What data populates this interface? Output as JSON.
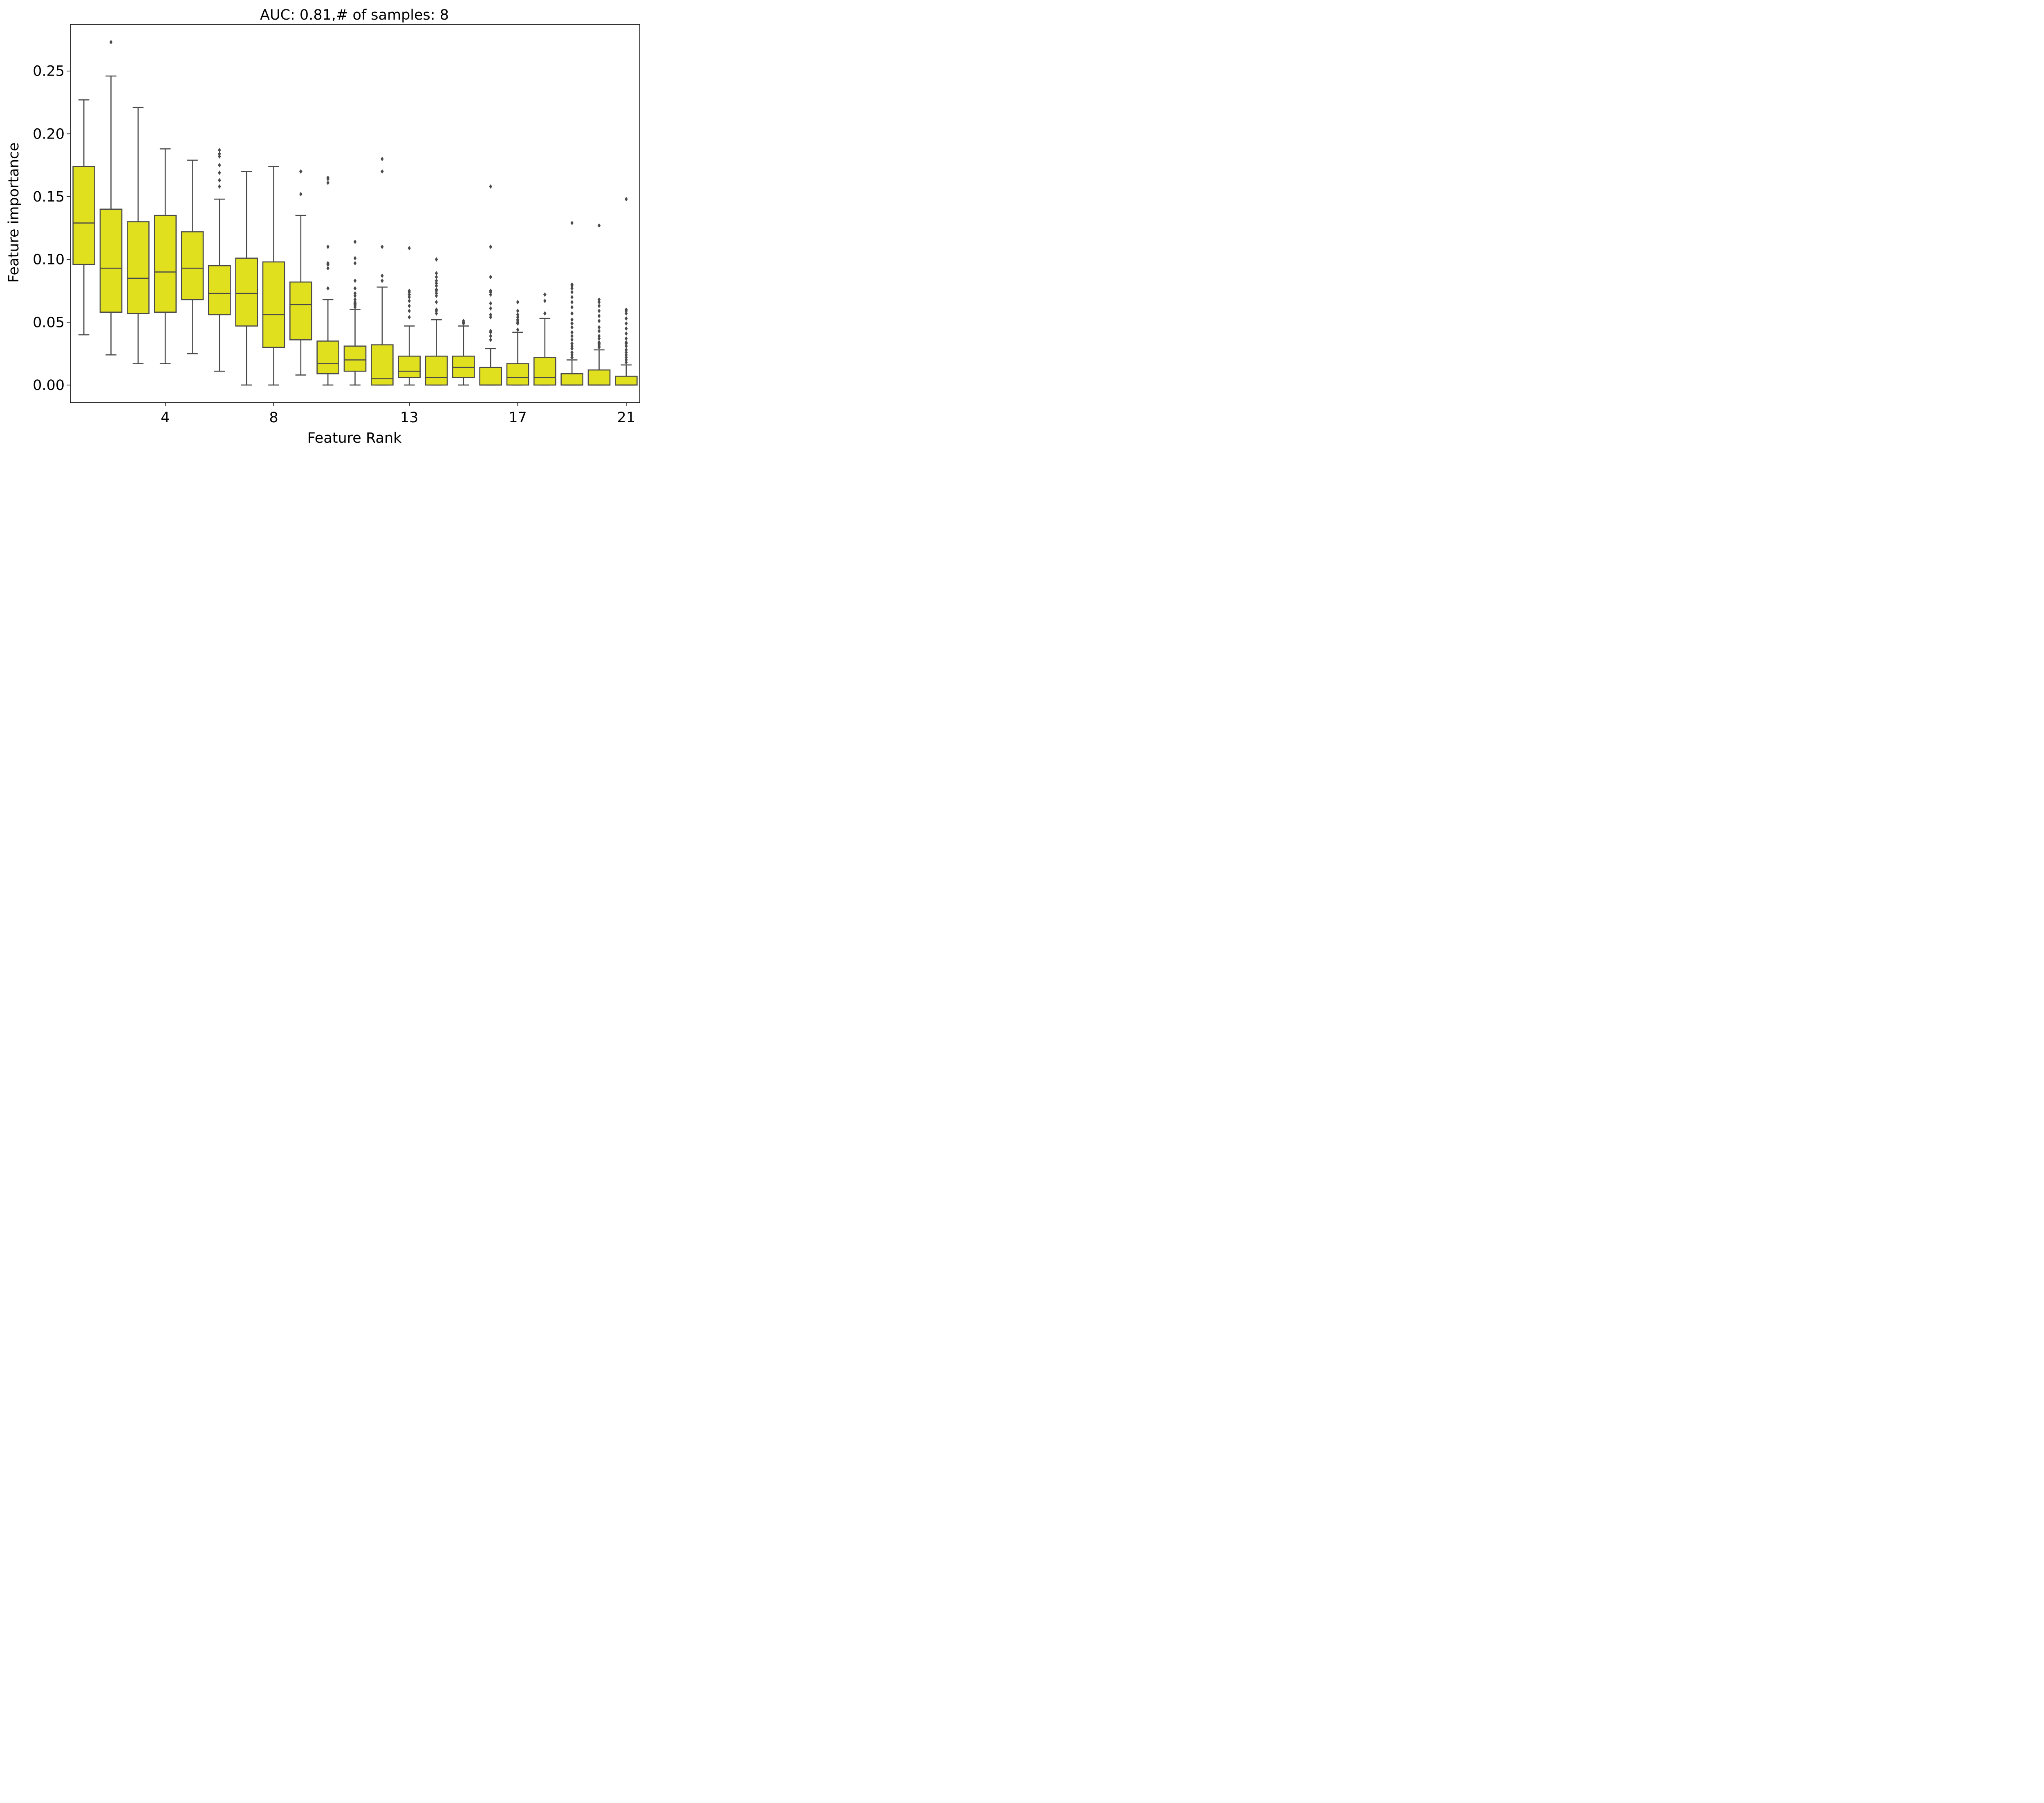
{
  "chart_data": {
    "type": "box",
    "title": "AUC: 0.81,# of samples: 8",
    "xlabel": "Feature Rank",
    "ylabel": "Feature importance",
    "ylim": [
      -0.014,
      0.287
    ],
    "yticks": [
      0.0,
      0.05,
      0.1,
      0.15,
      0.2,
      0.25
    ],
    "ytick_labels": [
      "0.00",
      "0.05",
      "0.10",
      "0.15",
      "0.20",
      "0.25"
    ],
    "xrange": [
      0.5,
      21.5
    ],
    "xticks": [
      4,
      8,
      13,
      17,
      21
    ],
    "xtick_labels": [
      "4",
      "8",
      "13",
      "17",
      "21"
    ],
    "box_fill": "#e1e01f",
    "line_color": "#4a4a4a",
    "grid": false,
    "boxes": [
      {
        "rank": 1,
        "whislo": 0.04,
        "q1": 0.096,
        "median": 0.129,
        "q3": 0.174,
        "whishi": 0.227,
        "fliers": []
      },
      {
        "rank": 2,
        "whislo": 0.024,
        "q1": 0.058,
        "median": 0.093,
        "q3": 0.14,
        "whishi": 0.246,
        "fliers": [
          0.273
        ]
      },
      {
        "rank": 3,
        "whislo": 0.017,
        "q1": 0.057,
        "median": 0.085,
        "q3": 0.13,
        "whishi": 0.221,
        "fliers": []
      },
      {
        "rank": 4,
        "whislo": 0.017,
        "q1": 0.058,
        "median": 0.09,
        "q3": 0.135,
        "whishi": 0.188,
        "fliers": []
      },
      {
        "rank": 5,
        "whislo": 0.025,
        "q1": 0.068,
        "median": 0.093,
        "q3": 0.122,
        "whishi": 0.179,
        "fliers": []
      },
      {
        "rank": 6,
        "whislo": 0.011,
        "q1": 0.056,
        "median": 0.073,
        "q3": 0.095,
        "whishi": 0.148,
        "fliers": [
          0.158,
          0.163,
          0.169,
          0.175,
          0.182,
          0.184,
          0.187
        ]
      },
      {
        "rank": 7,
        "whislo": 0.0,
        "q1": 0.047,
        "median": 0.073,
        "q3": 0.101,
        "whishi": 0.17,
        "fliers": []
      },
      {
        "rank": 8,
        "whislo": 0.0,
        "q1": 0.03,
        "median": 0.056,
        "q3": 0.098,
        "whishi": 0.174,
        "fliers": []
      },
      {
        "rank": 9,
        "whislo": 0.008,
        "q1": 0.036,
        "median": 0.064,
        "q3": 0.082,
        "whishi": 0.135,
        "fliers": [
          0.152,
          0.17
        ]
      },
      {
        "rank": 10,
        "whislo": 0.0,
        "q1": 0.009,
        "median": 0.017,
        "q3": 0.035,
        "whishi": 0.068,
        "fliers": [
          0.077,
          0.093,
          0.096,
          0.097,
          0.11,
          0.161,
          0.164,
          0.165
        ]
      },
      {
        "rank": 11,
        "whislo": 0.0,
        "q1": 0.011,
        "median": 0.02,
        "q3": 0.031,
        "whishi": 0.06,
        "fliers": [
          0.062,
          0.063,
          0.064,
          0.065,
          0.066,
          0.068,
          0.071,
          0.073,
          0.077,
          0.083,
          0.097,
          0.101,
          0.114
        ]
      },
      {
        "rank": 12,
        "whislo": 0.0,
        "q1": 0.0,
        "median": 0.005,
        "q3": 0.032,
        "whishi": 0.078,
        "fliers": [
          0.083,
          0.087,
          0.11,
          0.17,
          0.18
        ]
      },
      {
        "rank": 13,
        "whislo": 0.0,
        "q1": 0.006,
        "median": 0.011,
        "q3": 0.023,
        "whishi": 0.047,
        "fliers": [
          0.054,
          0.059,
          0.063,
          0.067,
          0.07,
          0.072,
          0.074,
          0.075,
          0.109
        ]
      },
      {
        "rank": 14,
        "whislo": 0.0,
        "q1": 0.0,
        "median": 0.006,
        "q3": 0.023,
        "whishi": 0.052,
        "fliers": [
          0.057,
          0.059,
          0.06,
          0.066,
          0.071,
          0.073,
          0.075,
          0.076,
          0.079,
          0.081,
          0.083,
          0.086,
          0.089,
          0.1
        ]
      },
      {
        "rank": 15,
        "whislo": 0.0,
        "q1": 0.006,
        "median": 0.014,
        "q3": 0.023,
        "whishi": 0.047,
        "fliers": [
          0.049,
          0.05,
          0.051
        ]
      },
      {
        "rank": 16,
        "whislo": 0.0,
        "q1": 0.0,
        "median": 0.0,
        "q3": 0.014,
        "whishi": 0.029,
        "fliers": [
          0.036,
          0.039,
          0.042,
          0.043,
          0.054,
          0.056,
          0.061,
          0.065,
          0.072,
          0.074,
          0.075,
          0.086,
          0.11,
          0.158
        ]
      },
      {
        "rank": 17,
        "whislo": 0.0,
        "q1": 0.0,
        "median": 0.006,
        "q3": 0.017,
        "whishi": 0.042,
        "fliers": [
          0.044,
          0.049,
          0.05,
          0.051,
          0.052,
          0.054,
          0.056,
          0.059,
          0.066
        ]
      },
      {
        "rank": 18,
        "whislo": 0.0,
        "q1": 0.0,
        "median": 0.006,
        "q3": 0.022,
        "whishi": 0.053,
        "fliers": [
          0.057,
          0.067,
          0.072
        ]
      },
      {
        "rank": 19,
        "whislo": 0.0,
        "q1": 0.0,
        "median": 0.0,
        "q3": 0.009,
        "whishi": 0.02,
        "fliers": [
          0.022,
          0.024,
          0.026,
          0.029,
          0.031,
          0.033,
          0.036,
          0.039,
          0.042,
          0.046,
          0.049,
          0.052,
          0.057,
          0.062,
          0.066,
          0.07,
          0.074,
          0.077,
          0.079,
          0.08,
          0.129
        ]
      },
      {
        "rank": 20,
        "whislo": 0.0,
        "q1": 0.0,
        "median": 0.0,
        "q3": 0.012,
        "whishi": 0.028,
        "fliers": [
          0.03,
          0.031,
          0.032,
          0.033,
          0.034,
          0.037,
          0.039,
          0.043,
          0.046,
          0.051,
          0.055,
          0.059,
          0.063,
          0.066,
          0.068,
          0.127
        ]
      },
      {
        "rank": 21,
        "whislo": 0.0,
        "q1": 0.0,
        "median": 0.0,
        "q3": 0.007,
        "whishi": 0.016,
        "fliers": [
          0.018,
          0.02,
          0.022,
          0.024,
          0.026,
          0.028,
          0.031,
          0.033,
          0.034,
          0.037,
          0.041,
          0.045,
          0.049,
          0.053,
          0.057,
          0.059,
          0.06,
          0.148
        ]
      }
    ]
  }
}
